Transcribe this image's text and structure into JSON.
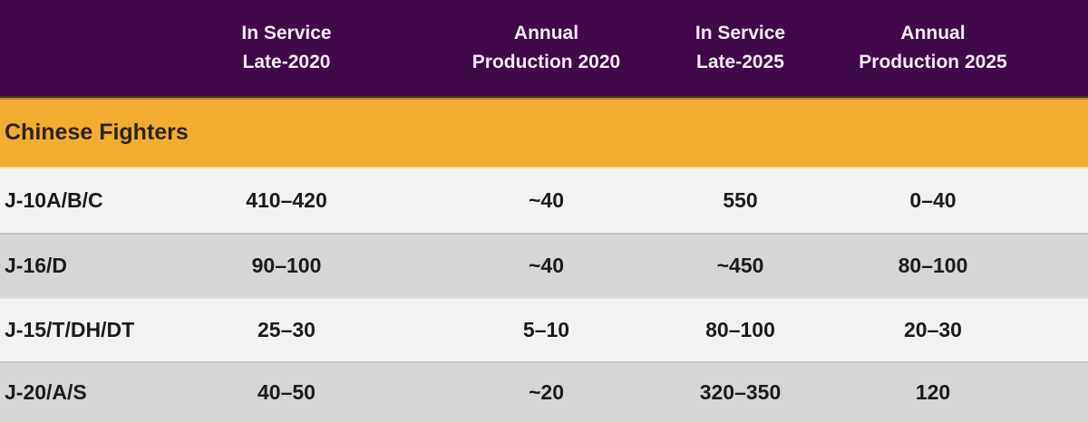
{
  "table": {
    "header": {
      "columns": [
        {
          "line1": "In Service",
          "line2": "Late-2020"
        },
        {
          "line1": "Annual",
          "line2": "Production 2020"
        },
        {
          "line1": "In Service",
          "line2": "Late-2025"
        },
        {
          "line1": "Annual",
          "line2": "Production 2025"
        }
      ]
    },
    "section": {
      "title": "Chinese Fighters"
    },
    "rows": [
      {
        "label": "J-10A/B/C",
        "values": [
          "410–420",
          "~40",
          "550",
          "0–40"
        ]
      },
      {
        "label": "J-16/D",
        "values": [
          "90–100",
          "~40",
          "~450",
          "80–100"
        ]
      },
      {
        "label": "J-15/T/DH/DT",
        "values": [
          "25–30",
          "5–10",
          "80–100",
          "20–30"
        ]
      },
      {
        "label": "J-20/A/S",
        "values": [
          "40–50",
          "~20",
          "320–350",
          "120"
        ]
      }
    ],
    "colors": {
      "header_bg": "#40094a",
      "header_text": "#f3ecf3",
      "section_bg": "#f2ac2f",
      "section_text": "#2b2416",
      "row_light": "#f3f2f0",
      "row_gray": "#d7d6d4",
      "data_text": "#1b1b1b"
    }
  }
}
